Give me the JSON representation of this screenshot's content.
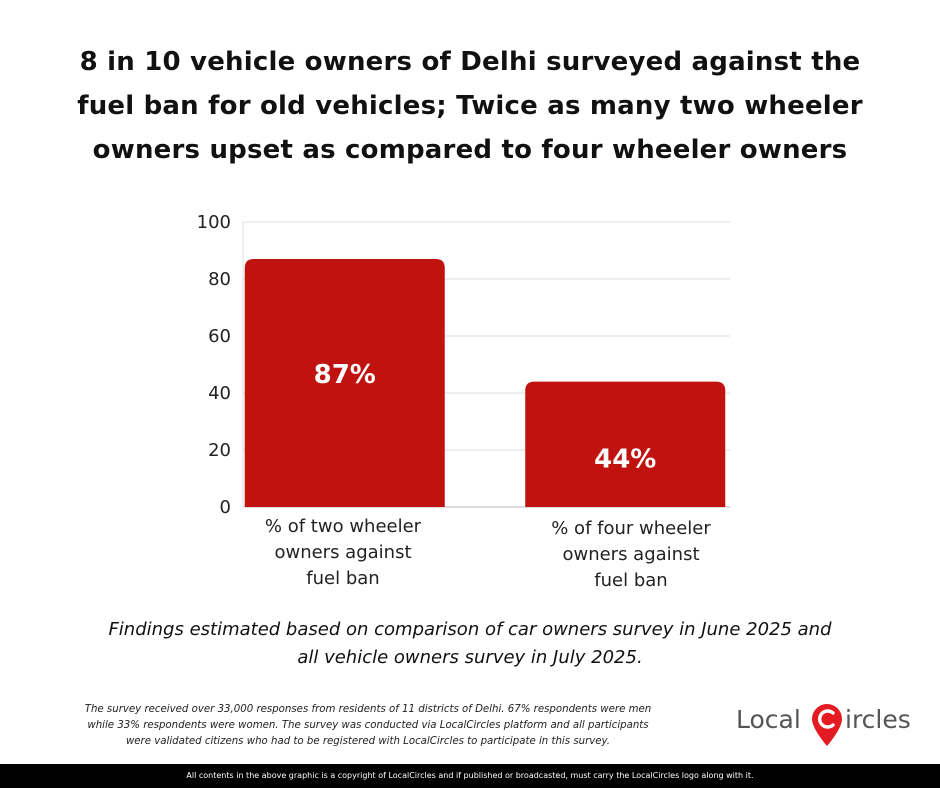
{
  "title_lines": [
    "8 in 10 vehicle owners of Delhi surveyed against the",
    "fuel ban for old vehicles; Twice as many two wheeler",
    "owners upset as compared to four wheeler owners"
  ],
  "chart_data": {
    "type": "bar",
    "categories": [
      "% of two wheeler owners against fuel ban",
      "% of four wheeler owners against fuel ban"
    ],
    "category_label_lines": [
      [
        "% of two wheeler",
        "owners against",
        "fuel ban"
      ],
      [
        "% of four wheeler",
        "owners against",
        "fuel ban"
      ]
    ],
    "values": [
      87,
      44
    ],
    "data_labels": [
      "87%",
      "44%"
    ],
    "ylim": [
      0,
      100
    ],
    "yticks": [
      0,
      20,
      40,
      60,
      80,
      100
    ],
    "grid": true,
    "bar_color": "#c0130f"
  },
  "findings_lines": [
    "Findings estimated based on comparison of car owners survey in June 2025 and",
    "all vehicle owners survey in July 2025."
  ],
  "footnote_lines": [
    "The survey received over 33,000 responses from residents of 11 districts of Delhi. 67% respondents were men",
    "while 33% respondents were women. The survey was conducted via LocalCircles platform and all participants",
    "were validated citizens who had to be registered with LocalCircles to participate in this survey."
  ],
  "logo": {
    "part1": "Local",
    "part2": "ircles",
    "icon": "map-pin-c-icon",
    "accent": "#e31b23"
  },
  "copyright": "All contents in the above graphic is a copyright of LocalCircles and if published or broadcasted, must carry the LocalCircles logo along with it."
}
